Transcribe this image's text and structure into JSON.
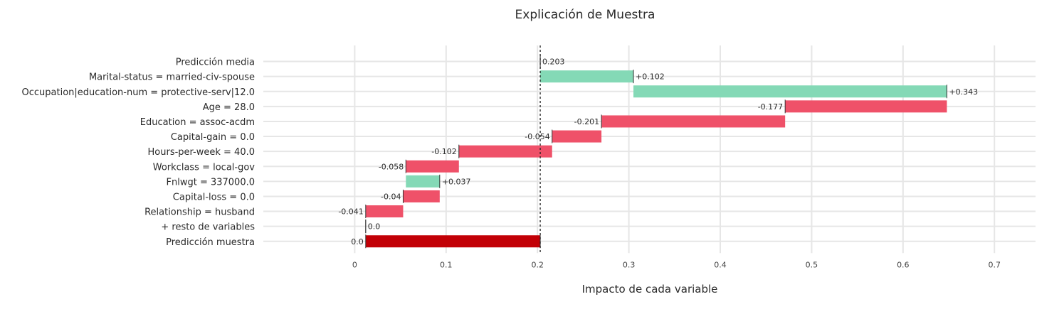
{
  "chart_data": {
    "type": "bar",
    "subtype": "waterfall",
    "orientation": "horizontal",
    "title": "Explicación de Muestra",
    "xlabel": "Impacto de cada variable",
    "ylabel": "",
    "xlim": [
      -0.1,
      0.745
    ],
    "x_ticks": [
      0,
      0.1,
      0.2,
      0.3,
      0.4,
      0.5,
      0.6,
      0.7
    ],
    "x_tick_labels": [
      "0",
      "0.1",
      "0.2",
      "0.3",
      "0.4",
      "0.5",
      "0.6",
      "0.7"
    ],
    "grid": true,
    "legend": "none",
    "reference_line": {
      "value": 0.203,
      "style": "dotted"
    },
    "colors": {
      "positive": "#84d9b6",
      "negative": "#ef5169",
      "final": "#c20006",
      "connector": "#333333"
    },
    "categories": [
      "Predicción media",
      "Marital-status = married-civ-spouse",
      "Occupation|education-num = protective-serv|12.0",
      "Age = 28.0",
      "Education = assoc-acdm",
      "Capital-gain = 0.0",
      "Hours-per-week = 40.0",
      "Workclass = local-gov",
      "Fnlwgt = 337000.0",
      "Capital-loss = 0.0",
      "Relationship = husband",
      "+ resto de variables",
      "Predicción muestra"
    ],
    "bars": [
      {
        "start": 0.203,
        "end": 0.203,
        "label": "0.203",
        "kind": "base"
      },
      {
        "start": 0.203,
        "end": 0.305,
        "label": "+0.102",
        "kind": "positive"
      },
      {
        "start": 0.305,
        "end": 0.648,
        "label": "+0.343",
        "kind": "positive"
      },
      {
        "start": 0.648,
        "end": 0.471,
        "label": "-0.177",
        "kind": "negative"
      },
      {
        "start": 0.471,
        "end": 0.27,
        "label": "-0.201",
        "kind": "negative"
      },
      {
        "start": 0.27,
        "end": 0.216,
        "label": "-0.054",
        "kind": "negative"
      },
      {
        "start": 0.216,
        "end": 0.114,
        "label": "-0.102",
        "kind": "negative"
      },
      {
        "start": 0.114,
        "end": 0.056,
        "label": "-0.058",
        "kind": "negative"
      },
      {
        "start": 0.056,
        "end": 0.093,
        "label": "+0.037",
        "kind": "positive"
      },
      {
        "start": 0.093,
        "end": 0.053,
        "label": "-0.04",
        "kind": "negative"
      },
      {
        "start": 0.053,
        "end": 0.012,
        "label": "-0.041",
        "kind": "negative"
      },
      {
        "start": 0.012,
        "end": 0.012,
        "label": "0.0",
        "kind": "base"
      },
      {
        "start": 0.012,
        "end": 0.203,
        "label": "0.0",
        "kind": "final"
      }
    ]
  }
}
